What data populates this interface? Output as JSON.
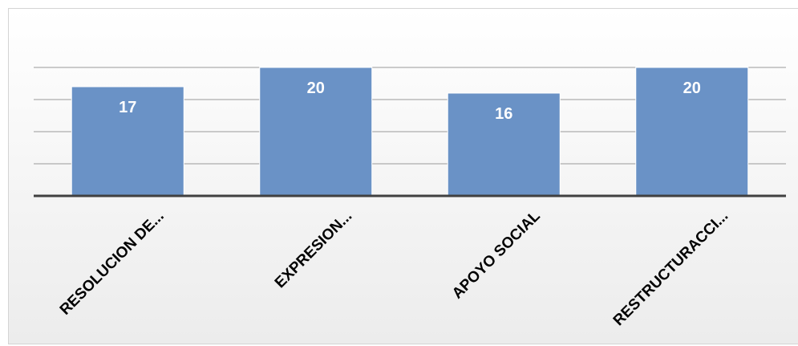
{
  "chart_data": {
    "type": "bar",
    "title": "",
    "xlabel": "",
    "ylabel": "",
    "categories": [
      "RESOLUCION DE...",
      "EXPRESION...",
      "APOYO SOCIAL",
      "RESTRUCTURACCI..."
    ],
    "series": [
      {
        "values": [
          17,
          20,
          16,
          20
        ]
      }
    ],
    "ylim": [
      0,
      25
    ],
    "grid": true,
    "legend": "none",
    "data_labels": true,
    "colors": {
      "bar": "#6a92c6",
      "bar_edge": "#ffffff",
      "axis": "#404040",
      "grid": "#9a9a9a",
      "label": "#000000",
      "value_label": "#ffffff"
    }
  }
}
